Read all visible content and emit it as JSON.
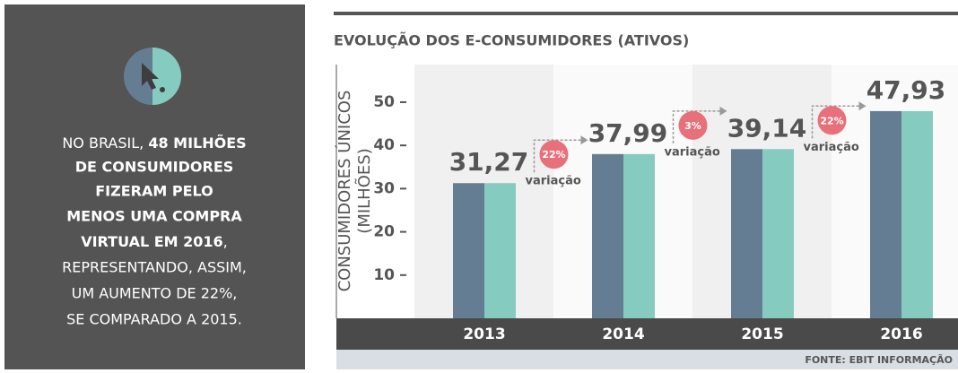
{
  "panel": {
    "text_normal_1": "NO BRASIL, ",
    "text_bold": [
      "48 MILHÕES",
      "DE CONSUMIDORES",
      "FIZERAM PELO",
      "MENOS UMA COMPRA",
      "VIRTUAL EM 2016"
    ],
    "text_normal_2": [
      "REPRESENTANDO, ASSIM,",
      "UM AUMENTO DE 22%,",
      "SE COMPARADO A 2015."
    ]
  },
  "chart_data": {
    "type": "bar",
    "title": "EVOLUÇÃO DOS E-CONSUMIDORES (ATIVOS)",
    "y_label": [
      "CONSUMIDORES ÚNICOS",
      "(MILHÕES)"
    ],
    "categories": [
      "2013",
      "2014",
      "2015",
      "2016"
    ],
    "values": [
      31.27,
      37.99,
      39.14,
      47.93
    ],
    "value_labels": [
      "31,27",
      "37,99",
      "39,14",
      "47,93"
    ],
    "colors": [
      "#657d92",
      "#86cbbf"
    ],
    "ylim": [
      0,
      58.7
    ],
    "yticks": [
      10,
      20,
      30,
      40,
      50
    ],
    "variations": [
      "22%",
      "3%",
      "22%"
    ],
    "variation_text": "variação",
    "source": "FONTE: EBIT INFORMAÇÃO"
  }
}
